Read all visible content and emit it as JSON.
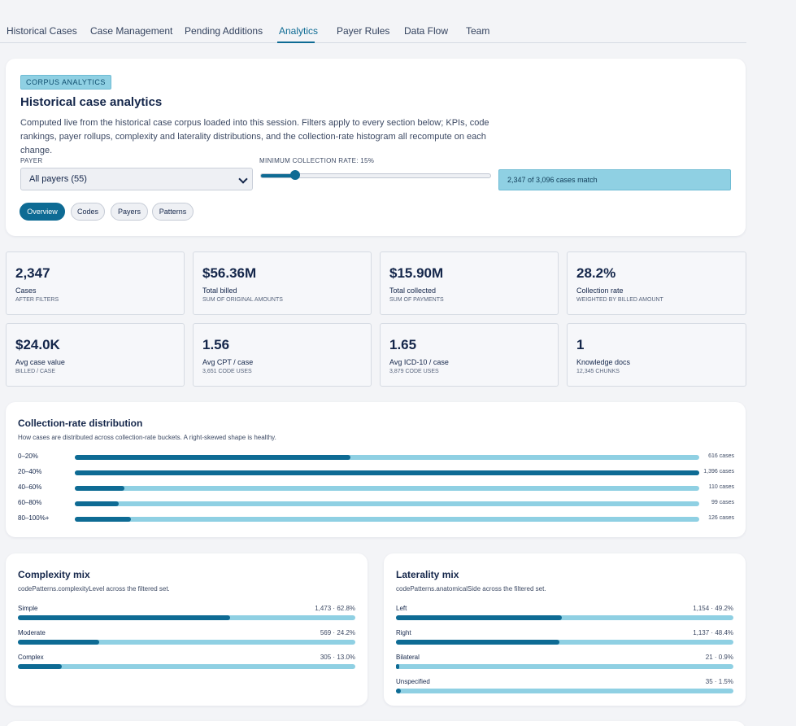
{
  "tabs": [
    {
      "label": "Historical Cases",
      "active": false
    },
    {
      "label": "Case Management",
      "active": false
    },
    {
      "label": "Pending Additions",
      "active": false
    },
    {
      "label": "Analytics",
      "active": true
    },
    {
      "label": "Payer Rules",
      "active": false
    },
    {
      "label": "Data Flow",
      "active": false
    },
    {
      "label": "Team",
      "active": false
    }
  ],
  "header": {
    "tag": "CORPUS ANALYTICS",
    "title": "Historical case analytics",
    "description": "Computed live from the historical case corpus loaded into this session. Filters apply to every section below; KPIs, code rankings, payer rollups, complexity and laterality distributions, and the collection-rate histogram all recompute on each change."
  },
  "filters": {
    "payer_label": "PAYER",
    "payer_value": "All payers (55)",
    "rate_label": "MINIMUM COLLECTION RATE: 15%",
    "rate_value": 15,
    "match_text": "2,347 of 3,096 cases match"
  },
  "view_tabs": [
    {
      "label": "Overview",
      "active": true
    },
    {
      "label": "Codes",
      "active": false
    },
    {
      "label": "Payers",
      "active": false
    },
    {
      "label": "Patterns",
      "active": false
    }
  ],
  "kpis": [
    {
      "value": "2,347",
      "label": "Cases",
      "sub": "AFTER FILTERS"
    },
    {
      "value": "$56.36M",
      "label": "Total billed",
      "sub": "SUM OF ORIGINAL AMOUNTS"
    },
    {
      "value": "$15.90M",
      "label": "Total collected",
      "sub": "SUM OF PAYMENTS"
    },
    {
      "value": "28.2%",
      "label": "Collection rate",
      "sub": "WEIGHTED BY BILLED AMOUNT"
    },
    {
      "value": "$24.0K",
      "label": "Avg case value",
      "sub": "BILLED / CASE"
    },
    {
      "value": "1.56",
      "label": "Avg CPT / case",
      "sub": "3,651 CODE USES"
    },
    {
      "value": "1.65",
      "label": "Avg ICD-10 / case",
      "sub": "3,879 CODE USES"
    },
    {
      "value": "1",
      "label": "Knowledge docs",
      "sub": "12,345 CHUNKS"
    }
  ],
  "distribution": {
    "title": "Collection-rate distribution",
    "description": "How cases are distributed across collection-rate buckets. A right-skewed shape is healthy.",
    "max": 1396,
    "rows": [
      {
        "bucket": "0–20%",
        "count": 616,
        "count_label": "616 cases"
      },
      {
        "bucket": "20–40%",
        "count": 1396,
        "count_label": "1,396 cases"
      },
      {
        "bucket": "40–60%",
        "count": 110,
        "count_label": "110 cases"
      },
      {
        "bucket": "60–80%",
        "count": 99,
        "count_label": "99 cases"
      },
      {
        "bucket": "80–100%+",
        "count": 126,
        "count_label": "126 cases"
      }
    ]
  },
  "complexity": {
    "title": "Complexity mix",
    "description": "codePatterns.complexityLevel across the filtered set.",
    "rows": [
      {
        "name": "Simple",
        "stat": "1,473 · 62.8%",
        "pct": 62.8
      },
      {
        "name": "Moderate",
        "stat": "569 · 24.2%",
        "pct": 24.2
      },
      {
        "name": "Complex",
        "stat": "305 · 13.0%",
        "pct": 13.0
      }
    ]
  },
  "laterality": {
    "title": "Laterality mix",
    "description": "codePatterns.anatomicalSide across the filtered set.",
    "rows": [
      {
        "name": "Left",
        "stat": "1,154 · 49.2%",
        "pct": 49.2
      },
      {
        "name": "Right",
        "stat": "1,137 · 48.4%",
        "pct": 48.4
      },
      {
        "name": "Bilateral",
        "stat": "21 · 0.9%",
        "pct": 0.9
      },
      {
        "name": "Unspecified",
        "stat": "35 · 1.5%",
        "pct": 1.5
      }
    ]
  }
}
